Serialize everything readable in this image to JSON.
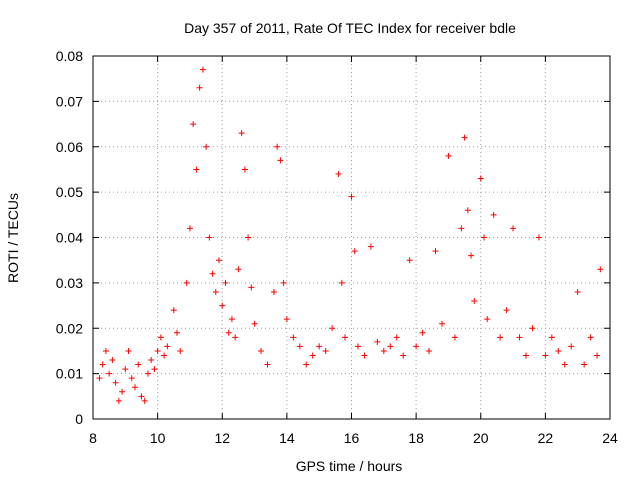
{
  "chart_data": {
    "type": "scatter",
    "title": "Day 357 of 2011, Rate Of TEC Index for receiver bdle",
    "xlabel": "GPS time / hours",
    "ylabel": "ROTI / TECUs",
    "xlim": [
      8,
      24
    ],
    "ylim": [
      0,
      0.08
    ],
    "x_ticks": [
      "8",
      "10",
      "12",
      "14",
      "16",
      "18",
      "20",
      "22",
      "24"
    ],
    "y_ticks": [
      "0",
      "0.01",
      "0.02",
      "0.03",
      "0.04",
      "0.05",
      "0.06",
      "0.07",
      "0.08"
    ],
    "grid": true,
    "marker": "plus",
    "color": "#ff0000",
    "series": [
      {
        "points": [
          [
            8.2,
            0.009
          ],
          [
            8.3,
            0.012
          ],
          [
            8.4,
            0.015
          ],
          [
            8.5,
            0.01
          ],
          [
            8.6,
            0.013
          ],
          [
            8.7,
            0.008
          ],
          [
            8.8,
            0.004
          ],
          [
            8.9,
            0.006
          ],
          [
            9.0,
            0.011
          ],
          [
            9.1,
            0.015
          ],
          [
            9.2,
            0.009
          ],
          [
            9.3,
            0.007
          ],
          [
            9.4,
            0.012
          ],
          [
            9.5,
            0.005
          ],
          [
            9.6,
            0.004
          ],
          [
            9.7,
            0.01
          ],
          [
            9.8,
            0.013
          ],
          [
            9.9,
            0.011
          ],
          [
            10.0,
            0.015
          ],
          [
            10.1,
            0.018
          ],
          [
            10.2,
            0.014
          ],
          [
            10.3,
            0.016
          ],
          [
            10.5,
            0.024
          ],
          [
            10.6,
            0.019
          ],
          [
            10.7,
            0.015
          ],
          [
            10.9,
            0.03
          ],
          [
            11.0,
            0.042
          ],
          [
            11.1,
            0.065
          ],
          [
            11.2,
            0.055
          ],
          [
            11.3,
            0.073
          ],
          [
            11.4,
            0.077
          ],
          [
            11.5,
            0.06
          ],
          [
            11.6,
            0.04
          ],
          [
            11.7,
            0.032
          ],
          [
            11.8,
            0.028
          ],
          [
            11.9,
            0.035
          ],
          [
            12.0,
            0.025
          ],
          [
            12.1,
            0.03
          ],
          [
            12.2,
            0.019
          ],
          [
            12.3,
            0.022
          ],
          [
            12.4,
            0.018
          ],
          [
            12.5,
            0.033
          ],
          [
            12.6,
            0.063
          ],
          [
            12.7,
            0.055
          ],
          [
            12.8,
            0.04
          ],
          [
            12.9,
            0.029
          ],
          [
            13.0,
            0.021
          ],
          [
            13.2,
            0.015
          ],
          [
            13.4,
            0.012
          ],
          [
            13.6,
            0.028
          ],
          [
            13.7,
            0.06
          ],
          [
            13.8,
            0.057
          ],
          [
            13.9,
            0.03
          ],
          [
            14.0,
            0.022
          ],
          [
            14.2,
            0.018
          ],
          [
            14.4,
            0.016
          ],
          [
            14.6,
            0.012
          ],
          [
            14.8,
            0.014
          ],
          [
            15.0,
            0.016
          ],
          [
            15.2,
            0.015
          ],
          [
            15.4,
            0.02
          ],
          [
            15.6,
            0.054
          ],
          [
            15.7,
            0.03
          ],
          [
            15.8,
            0.018
          ],
          [
            16.0,
            0.049
          ],
          [
            16.1,
            0.037
          ],
          [
            16.2,
            0.016
          ],
          [
            16.4,
            0.014
          ],
          [
            16.6,
            0.038
          ],
          [
            16.8,
            0.017
          ],
          [
            17.0,
            0.015
          ],
          [
            17.2,
            0.016
          ],
          [
            17.4,
            0.018
          ],
          [
            17.6,
            0.014
          ],
          [
            17.8,
            0.035
          ],
          [
            18.0,
            0.016
          ],
          [
            18.2,
            0.019
          ],
          [
            18.4,
            0.015
          ],
          [
            18.6,
            0.037
          ],
          [
            18.8,
            0.021
          ],
          [
            19.0,
            0.058
          ],
          [
            19.2,
            0.018
          ],
          [
            19.4,
            0.042
          ],
          [
            19.5,
            0.062
          ],
          [
            19.6,
            0.046
          ],
          [
            19.7,
            0.036
          ],
          [
            19.8,
            0.026
          ],
          [
            20.0,
            0.053
          ],
          [
            20.1,
            0.04
          ],
          [
            20.2,
            0.022
          ],
          [
            20.4,
            0.045
          ],
          [
            20.6,
            0.018
          ],
          [
            20.8,
            0.024
          ],
          [
            21.0,
            0.042
          ],
          [
            21.2,
            0.018
          ],
          [
            21.4,
            0.014
          ],
          [
            21.6,
            0.02
          ],
          [
            21.8,
            0.04
          ],
          [
            22.0,
            0.014
          ],
          [
            22.2,
            0.018
          ],
          [
            22.4,
            0.015
          ],
          [
            22.6,
            0.012
          ],
          [
            22.8,
            0.016
          ],
          [
            23.0,
            0.028
          ],
          [
            23.2,
            0.012
          ],
          [
            23.4,
            0.018
          ],
          [
            23.6,
            0.014
          ],
          [
            23.7,
            0.033
          ]
        ]
      }
    ]
  }
}
